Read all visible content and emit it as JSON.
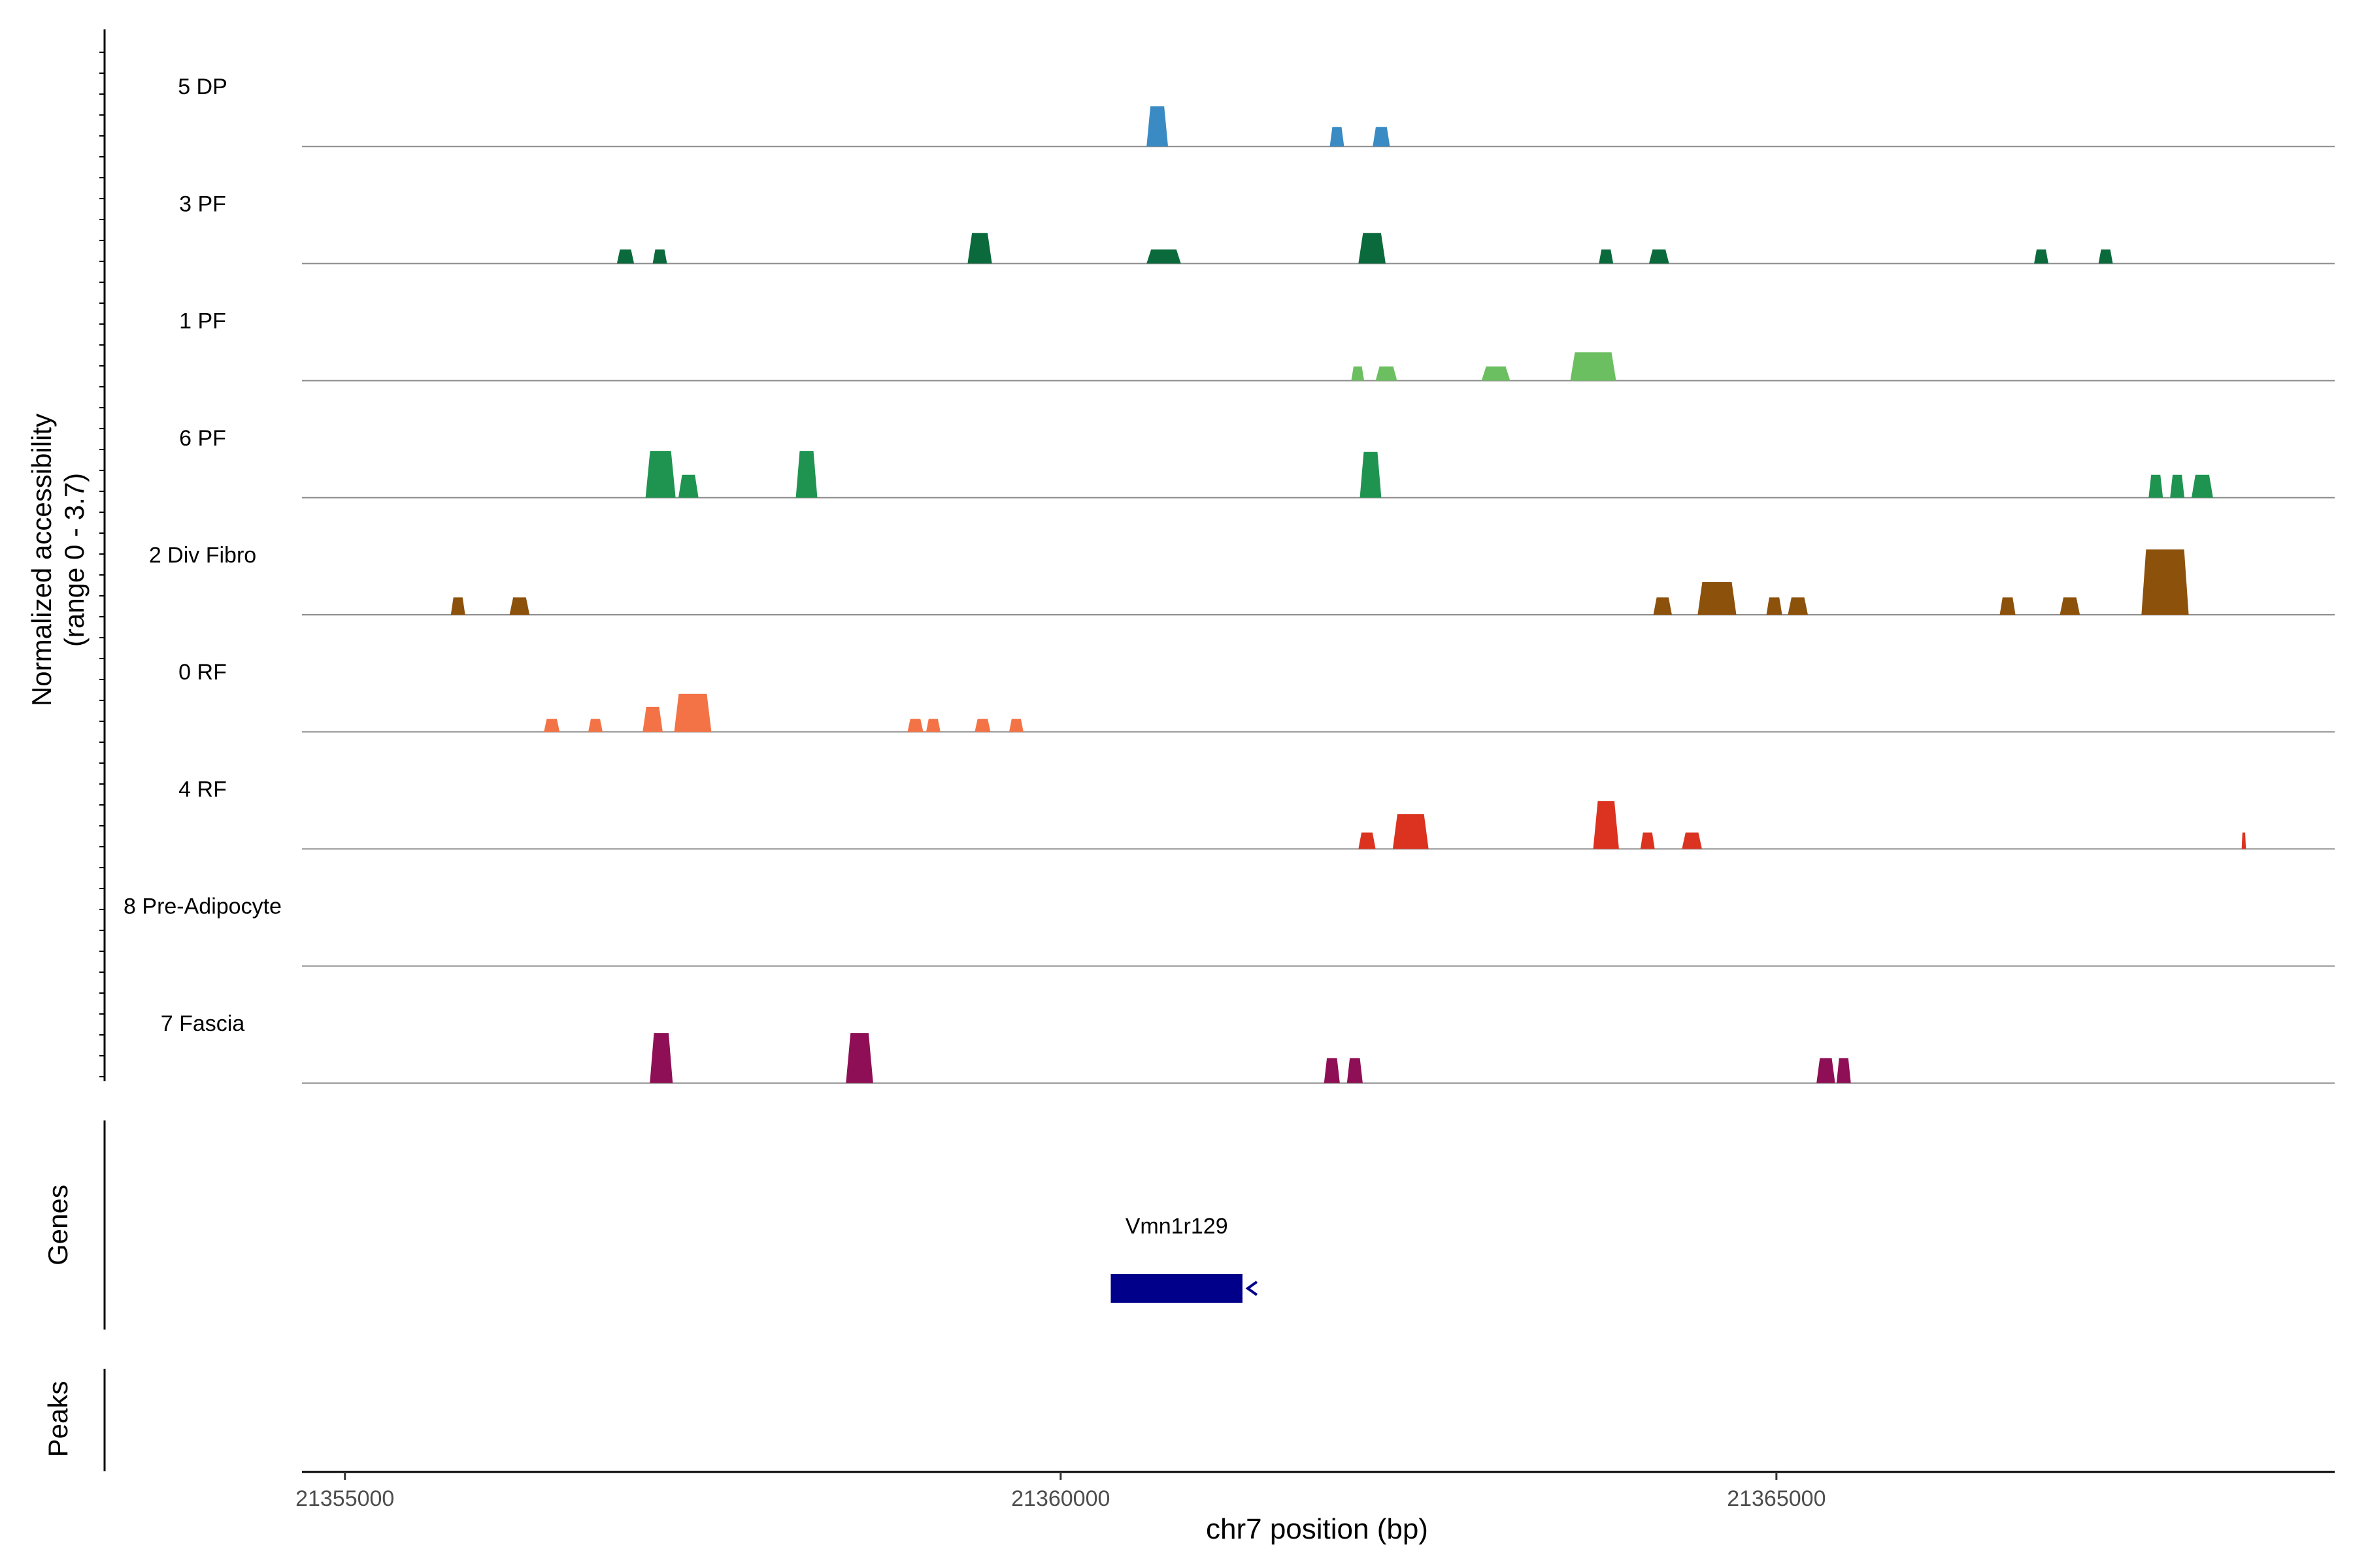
{
  "chart_data": {
    "type": "area",
    "subtype": "genome-coverage-track",
    "ylabel_line1": "Normalized accessibility",
    "ylabel_line2": "(range 0 - 3.7)",
    "y_range": [
      0,
      3.7
    ],
    "xlabel": "chr7 position (bp)",
    "xlim": [
      21354700,
      21368900
    ],
    "x_ticks": [
      21355000,
      21360000,
      21365000
    ],
    "x_tick_labels": [
      "21355000",
      "21360000",
      "21365000"
    ],
    "genes_label": "Genes",
    "peaks_label": "Peaks",
    "genes": [
      {
        "name": "Vmn1r129",
        "start": 21360350,
        "end": 21361270,
        "strand": "-",
        "color": "#00008B"
      }
    ],
    "tracks": [
      {
        "name": "5 DP",
        "color": "#3A8BC4",
        "peaks": [
          [
            21360600,
            21360750,
            3.7
          ],
          [
            21361880,
            21361980,
            1.8
          ],
          [
            21362180,
            21362300,
            1.8
          ]
        ]
      },
      {
        "name": "3 PF",
        "color": "#0A6A3C",
        "peaks": [
          [
            21356900,
            21357020,
            1.3
          ],
          [
            21357150,
            21357250,
            1.3
          ],
          [
            21359350,
            21359520,
            2.8
          ],
          [
            21360600,
            21360840,
            1.3
          ],
          [
            21362080,
            21362270,
            2.8
          ],
          [
            21363760,
            21363860,
            1.3
          ],
          [
            21364110,
            21364250,
            1.3
          ],
          [
            21366800,
            21366900,
            1.3
          ],
          [
            21367250,
            21367350,
            1.3
          ]
        ]
      },
      {
        "name": "1 PF",
        "color": "#6CBF61",
        "peaks": [
          [
            21362030,
            21362120,
            1.3
          ],
          [
            21362200,
            21362350,
            1.3
          ],
          [
            21362940,
            21363140,
            1.3
          ],
          [
            21363560,
            21363880,
            2.6
          ]
        ]
      },
      {
        "name": "6 PF",
        "color": "#1E9450",
        "peaks": [
          [
            21357100,
            21357310,
            4.3
          ],
          [
            21357330,
            21357470,
            2.1
          ],
          [
            21358150,
            21358300,
            4.3
          ],
          [
            21362090,
            21362240,
            4.2
          ],
          [
            21367600,
            21367700,
            2.1
          ],
          [
            21367750,
            21367850,
            2.1
          ],
          [
            21367900,
            21368050,
            2.1
          ]
        ]
      },
      {
        "name": "2 Div Fibro",
        "color": "#8C520C",
        "peaks": [
          [
            21355740,
            21355840,
            1.6
          ],
          [
            21356150,
            21356290,
            1.6
          ],
          [
            21364140,
            21364270,
            1.6
          ],
          [
            21364450,
            21364720,
            3.0
          ],
          [
            21364930,
            21365040,
            1.6
          ],
          [
            21365080,
            21365220,
            1.6
          ],
          [
            21366560,
            21366670,
            1.6
          ],
          [
            21366980,
            21367120,
            1.6
          ],
          [
            21367550,
            21367880,
            6.0
          ]
        ]
      },
      {
        "name": "0 RF",
        "color": "#F47346",
        "peaks": [
          [
            21356390,
            21356500,
            1.2
          ],
          [
            21356700,
            21356800,
            1.2
          ],
          [
            21357080,
            21357220,
            2.3
          ],
          [
            21357300,
            21357560,
            3.5
          ],
          [
            21358930,
            21359040,
            1.2
          ],
          [
            21359060,
            21359160,
            1.2
          ],
          [
            21359400,
            21359510,
            1.2
          ],
          [
            21359640,
            21359740,
            1.2
          ]
        ]
      },
      {
        "name": "4 RF",
        "color": "#DB3320",
        "peaks": [
          [
            21362080,
            21362200,
            1.5
          ],
          [
            21362320,
            21362570,
            3.2
          ],
          [
            21363720,
            21363900,
            4.4
          ],
          [
            21364050,
            21364150,
            1.5
          ],
          [
            21364340,
            21364480,
            1.5
          ],
          [
            21368250,
            21368280,
            1.5
          ]
        ]
      },
      {
        "name": "8 Pre-Adipocyte",
        "color": "#4B1F6F",
        "peaks": []
      },
      {
        "name": "7 Fascia",
        "color": "#8F0F56",
        "peaks": [
          [
            21357130,
            21357290,
            4.6
          ],
          [
            21358500,
            21358690,
            4.6
          ],
          [
            21361840,
            21361950,
            2.3
          ],
          [
            21362000,
            21362110,
            2.3
          ],
          [
            21365280,
            21365410,
            2.3
          ],
          [
            21365420,
            21365520,
            2.3
          ]
        ]
      }
    ]
  }
}
